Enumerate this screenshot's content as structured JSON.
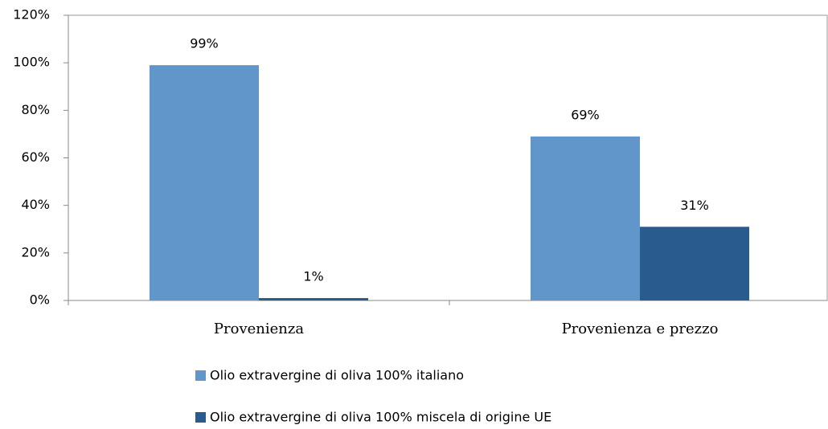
{
  "chart_data": {
    "type": "bar",
    "categories": [
      "Provenienza",
      "Provenienza e prezzo"
    ],
    "series": [
      {
        "name": "Olio extravergine di oliva 100% italiano",
        "color": "#6096c9",
        "values": [
          99,
          69
        ],
        "value_labels": [
          "99%",
          "69%"
        ]
      },
      {
        "name": "Olio extravergine di oliva 100% miscela di origine UE",
        "color": "#2a5b8e",
        "values": [
          1,
          31
        ],
        "value_labels": [
          "1%",
          "31%"
        ]
      }
    ],
    "ylim": [
      0,
      120
    ],
    "yticks": [
      {
        "value": 0,
        "label": "0%"
      },
      {
        "value": 20,
        "label": "20%"
      },
      {
        "value": 40,
        "label": "40%"
      },
      {
        "value": 60,
        "label": "60%"
      },
      {
        "value": 80,
        "label": "80%"
      },
      {
        "value": 100,
        "label": "100%"
      },
      {
        "value": 120,
        "label": "120%"
      }
    ],
    "legend": "bottom"
  }
}
